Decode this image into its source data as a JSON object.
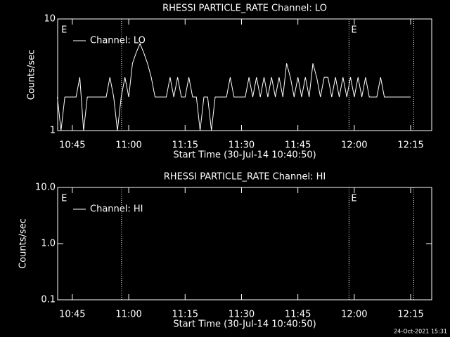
{
  "chart_data": [
    {
      "type": "line",
      "title": "RHESSI PARTICLE_RATE Channel: LO",
      "ylabel": "Counts/sec",
      "xlabel": "Start Time (30-Jul-14 10:40:50)",
      "log_y": true,
      "ylim": [
        1,
        10
      ],
      "yticks": [
        1,
        10
      ],
      "xlim": [
        641.1,
        740.6
      ],
      "xticks": [
        {
          "value": 645,
          "label": "10:45"
        },
        {
          "value": 660,
          "label": "11:00"
        },
        {
          "value": 675,
          "label": "11:15"
        },
        {
          "value": 690,
          "label": "11:30"
        },
        {
          "value": 705,
          "label": "11:45"
        },
        {
          "value": 720,
          "label": "12:00"
        },
        {
          "value": 735,
          "label": "12:15"
        }
      ],
      "vlines": [
        658.1,
        718.6,
        735.8
      ],
      "annotations": [
        {
          "text": "E",
          "x": 641.5
        },
        {
          "text": "E",
          "x": 718.6
        }
      ],
      "legend": "upper left",
      "series": [
        {
          "name": "Channel: LO",
          "color": "#ffffff",
          "x": [
            641,
            642,
            643,
            644,
            645,
            646,
            647,
            648,
            649,
            650,
            651,
            652,
            653,
            654,
            655,
            656,
            657,
            658,
            659,
            660,
            661,
            662,
            663,
            664,
            665,
            666,
            667,
            668,
            669,
            670,
            671,
            672,
            673,
            674,
            675,
            676,
            677,
            678,
            679,
            680,
            681,
            682,
            683,
            684,
            685,
            686,
            687,
            688,
            689,
            690,
            691,
            692,
            693,
            694,
            695,
            696,
            697,
            698,
            699,
            700,
            701,
            702,
            703,
            704,
            705,
            706,
            707,
            708,
            709,
            710,
            711,
            712,
            713,
            714,
            715,
            716,
            717,
            718,
            719,
            720,
            721,
            722,
            723,
            724,
            725,
            726,
            727,
            728,
            729,
            730,
            731,
            732,
            733,
            734,
            735
          ],
          "values": [
            2,
            1,
            2,
            2,
            2,
            2,
            3,
            1,
            2,
            2,
            2,
            2,
            2,
            2,
            3,
            2,
            1,
            2,
            3,
            2,
            4,
            5,
            6,
            5,
            4,
            3,
            2,
            2,
            2,
            2,
            3,
            2,
            3,
            2,
            2,
            3,
            2,
            2,
            1,
            2,
            2,
            1,
            2,
            2,
            2,
            2,
            3,
            2,
            2,
            2,
            2,
            3,
            2,
            3,
            2,
            3,
            2,
            3,
            2,
            3,
            2,
            4,
            3,
            2,
            3,
            2,
            3,
            2,
            4,
            3,
            2,
            3,
            3,
            2,
            3,
            2,
            3,
            2,
            3,
            2,
            3,
            2,
            3,
            2,
            2,
            2,
            3,
            2,
            2,
            2,
            2,
            2,
            2,
            2,
            2
          ]
        }
      ]
    },
    {
      "type": "line",
      "title": "RHESSI PARTICLE_RATE Channel: HI",
      "ylabel": "Counts/sec",
      "xlabel": "Start Time (30-Jul-14 10:40:50)",
      "log_y": true,
      "ylim": [
        0.1,
        10
      ],
      "yticks": [
        0.1,
        {
          "value": 1,
          "label": "1.0"
        },
        {
          "value": 10,
          "label": "10.0"
        }
      ],
      "xlim": [
        641.1,
        740.6
      ],
      "xticks": [
        {
          "value": 645,
          "label": "10:45"
        },
        {
          "value": 660,
          "label": "11:00"
        },
        {
          "value": 675,
          "label": "11:15"
        },
        {
          "value": 690,
          "label": "11:30"
        },
        {
          "value": 705,
          "label": "11:45"
        },
        {
          "value": 720,
          "label": "12:00"
        },
        {
          "value": 735,
          "label": "12:15"
        }
      ],
      "vlines": [
        658.1,
        718.6,
        735.8
      ],
      "annotations": [
        {
          "text": "E",
          "x": 641.5
        },
        {
          "text": "E",
          "x": 718.6
        }
      ],
      "legend": "upper left",
      "series": [
        {
          "name": "Channel: HI",
          "color": "#ffffff",
          "x": [],
          "values": []
        }
      ]
    }
  ],
  "footer": "24-Oct-2021 15:31"
}
